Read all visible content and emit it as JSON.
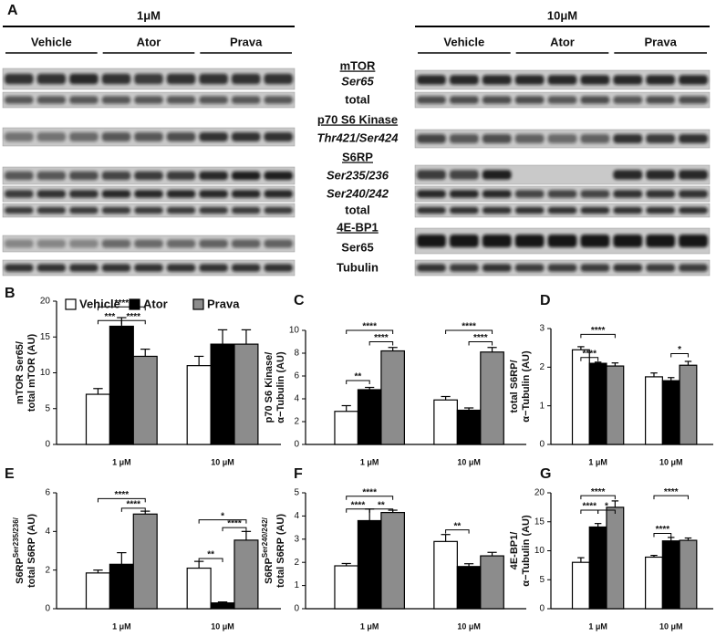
{
  "blot": {
    "panel": "A",
    "concentrations": [
      "1μM",
      "10μM"
    ],
    "groups": [
      "Vehicle",
      "Ator",
      "Prava"
    ],
    "rows": [
      {
        "text": "mTOR",
        "style": "underline"
      },
      {
        "text": "Ser65",
        "style": "italic"
      },
      {
        "text": "total",
        "style": "plain"
      },
      {
        "text": "p70 S6 Kinase",
        "style": "underline"
      },
      {
        "text": "Thr421/Ser424",
        "style": "italic"
      },
      {
        "text": "S6RP",
        "style": "underline"
      },
      {
        "text": "Ser235/236",
        "style": "italic"
      },
      {
        "text": "Ser240/242",
        "style": "italic"
      },
      {
        "text": "total",
        "style": "plain"
      },
      {
        "text": "4E-BP1",
        "style": "underline"
      },
      {
        "text": "Ser65",
        "style": "plain"
      },
      {
        "text": "Tubulin",
        "style": "plain"
      }
    ]
  },
  "legend": [
    {
      "name": "Vehicle",
      "color": "#ffffff"
    },
    {
      "name": "Ator",
      "color": "#000000"
    },
    {
      "name": "Prava",
      "color": "#8c8c8c"
    }
  ],
  "chart_data": [
    {
      "type": "bar",
      "panel": "B",
      "ylabel_lines": [
        [
          {
            "text": "mTOR Ser65/"
          }
        ],
        [
          {
            "text": "total mTOR (AU)"
          }
        ]
      ],
      "categories": [
        "1 μM",
        "10 μM"
      ],
      "series": [
        {
          "color": "#ffffff",
          "values": [
            7,
            11
          ],
          "errors": [
            0.8,
            1.3
          ]
        },
        {
          "color": "#000000",
          "values": [
            16.5,
            14
          ],
          "errors": [
            1.2,
            2
          ]
        },
        {
          "color": "#8c8c8c",
          "values": [
            12.3,
            14
          ],
          "errors": [
            1.0,
            2
          ]
        }
      ],
      "ylim": [
        0,
        20
      ],
      "yticks": [
        0,
        5,
        10,
        15,
        20
      ],
      "annotations": [
        {
          "text": "****",
          "group": 0,
          "from": 0,
          "to": 2,
          "y": 19.2
        },
        {
          "text": "***",
          "group": 0,
          "from": 0,
          "to": 1,
          "y": 17.3
        },
        {
          "text": "****",
          "group": 0,
          "from": 1,
          "to": 2,
          "y": 17.3
        }
      ]
    },
    {
      "type": "bar",
      "panel": "C",
      "ylabel_lines": [
        [
          {
            "text": "p70 S6 Kinase/"
          }
        ],
        [
          {
            "text": "α−Tubulin (AU)"
          }
        ]
      ],
      "categories": [
        "1 μM",
        "10 μM"
      ],
      "series": [
        {
          "color": "#ffffff",
          "values": [
            2.9,
            3.9
          ],
          "errors": [
            0.5,
            0.3
          ]
        },
        {
          "color": "#000000",
          "values": [
            4.8,
            3.0
          ],
          "errors": [
            0.2,
            0.2
          ]
        },
        {
          "color": "#8c8c8c",
          "values": [
            8.2,
            8.1
          ],
          "errors": [
            0.3,
            0.4
          ]
        }
      ],
      "ylim": [
        0,
        10
      ],
      "yticks": [
        0,
        2,
        4,
        6,
        8,
        10
      ],
      "annotations": [
        {
          "text": "**",
          "group": 0,
          "from": 0,
          "to": 1,
          "y": 5.6
        },
        {
          "text": "****",
          "group": 0,
          "from": 1,
          "to": 2,
          "y": 9.0
        },
        {
          "text": "****",
          "group": 0,
          "from": 0,
          "to": 2,
          "y": 10.0
        },
        {
          "text": "****",
          "group": 1,
          "from": 0,
          "to": 2,
          "y": 10.0
        },
        {
          "text": "****",
          "group": 1,
          "from": 1,
          "to": 2,
          "y": 9.0
        }
      ]
    },
    {
      "type": "bar",
      "panel": "D",
      "ylabel_lines": [
        [
          {
            "text": "total S6RP/"
          }
        ],
        [
          {
            "text": "α−Tubulin (AU)"
          }
        ]
      ],
      "categories": [
        "1 μM",
        "10 μM"
      ],
      "series": [
        {
          "color": "#ffffff",
          "values": [
            2.45,
            1.75
          ],
          "errors": [
            0.08,
            0.1
          ]
        },
        {
          "color": "#000000",
          "values": [
            2.1,
            1.65
          ],
          "errors": [
            0.03,
            0.08
          ]
        },
        {
          "color": "#8c8c8c",
          "values": [
            2.03,
            2.05
          ],
          "errors": [
            0.08,
            0.1
          ]
        }
      ],
      "ylim": [
        0,
        3
      ],
      "yticks": [
        0,
        1,
        2,
        3
      ],
      "annotations": [
        {
          "text": "****",
          "group": 0,
          "from": 0,
          "to": 1,
          "y": 2.25
        },
        {
          "text": "****",
          "group": 0,
          "from": 0,
          "to": 2,
          "y": 2.85
        },
        {
          "text": "*",
          "group": 1,
          "from": 1,
          "to": 2,
          "y": 2.35
        }
      ]
    },
    {
      "type": "bar",
      "panel": "E",
      "ylabel_lines": [
        [
          {
            "text": "S6RP"
          },
          {
            "text": "Ser235/236/",
            "sup": true
          }
        ],
        [
          {
            "text": "total S6RP (AU)"
          }
        ]
      ],
      "categories": [
        "1 μM",
        "10 μM"
      ],
      "series": [
        {
          "color": "#ffffff",
          "values": [
            1.85,
            2.1
          ],
          "errors": [
            0.15,
            0.35
          ]
        },
        {
          "color": "#000000",
          "values": [
            2.3,
            0.3
          ],
          "errors": [
            0.6,
            0.05
          ]
        },
        {
          "color": "#8c8c8c",
          "values": [
            4.9,
            3.55
          ],
          "errors": [
            0.15,
            0.45
          ]
        }
      ],
      "ylim": [
        0,
        6
      ],
      "yticks": [
        0,
        2,
        4,
        6
      ],
      "annotations": [
        {
          "text": "****",
          "group": 0,
          "from": 0,
          "to": 2,
          "y": 5.7
        },
        {
          "text": "****",
          "group": 0,
          "from": 1,
          "to": 2,
          "y": 5.2
        },
        {
          "text": "*",
          "group": 1,
          "from": 0,
          "to": 2,
          "y": 4.6
        },
        {
          "text": "****",
          "group": 1,
          "from": 1,
          "to": 2,
          "y": 4.2
        },
        {
          "text": "**",
          "group": 1,
          "from": 0,
          "to": 1,
          "y": 2.6
        }
      ]
    },
    {
      "type": "bar",
      "panel": "F",
      "ylabel_lines": [
        [
          {
            "text": "S6RP"
          },
          {
            "text": "Ser240/242/",
            "sup": true
          }
        ],
        [
          {
            "text": "total S6RP (AU)"
          }
        ]
      ],
      "categories": [
        "1 μM",
        "10 μM"
      ],
      "series": [
        {
          "color": "#ffffff",
          "values": [
            1.85,
            2.9
          ],
          "errors": [
            0.1,
            0.3
          ]
        },
        {
          "color": "#000000",
          "values": [
            3.8,
            1.82
          ],
          "errors": [
            0.5,
            0.12
          ]
        },
        {
          "color": "#8c8c8c",
          "values": [
            4.15,
            2.28
          ],
          "errors": [
            0.1,
            0.15
          ]
        }
      ],
      "ylim": [
        0,
        5
      ],
      "yticks": [
        0,
        1,
        2,
        3,
        4,
        5
      ],
      "annotations": [
        {
          "text": "****",
          "group": 0,
          "from": 0,
          "to": 2,
          "y": 4.85
        },
        {
          "text": "****",
          "group": 0,
          "from": 0,
          "to": 1,
          "y": 4.3
        },
        {
          "text": "**",
          "group": 0,
          "from": 1,
          "to": 2,
          "y": 4.3
        },
        {
          "text": "**",
          "group": 1,
          "from": 0,
          "to": 1,
          "y": 3.4
        }
      ]
    },
    {
      "type": "bar",
      "panel": "G",
      "ylabel_lines": [
        [
          {
            "text": "4E-BP1/"
          }
        ],
        [
          {
            "text": "α−Tubulin (AU)"
          }
        ]
      ],
      "categories": [
        "1 μM",
        "10 μM"
      ],
      "series": [
        {
          "color": "#ffffff",
          "values": [
            8,
            8.9
          ],
          "errors": [
            0.8,
            0.3
          ]
        },
        {
          "color": "#000000",
          "values": [
            14.1,
            11.7
          ],
          "errors": [
            0.6,
            0.6
          ]
        },
        {
          "color": "#8c8c8c",
          "values": [
            17.5,
            11.8
          ],
          "errors": [
            1.1,
            0.4
          ]
        }
      ],
      "ylim": [
        0,
        20
      ],
      "yticks": [
        0,
        5,
        10,
        15,
        20
      ],
      "annotations": [
        {
          "text": "****",
          "group": 0,
          "from": 0,
          "to": 2,
          "y": 19.5
        },
        {
          "text": "****",
          "group": 0,
          "from": 0,
          "to": 1,
          "y": 17
        },
        {
          "text": "*",
          "group": 0,
          "from": 1,
          "to": 2,
          "y": 17
        },
        {
          "text": "****",
          "group": 1,
          "from": 0,
          "to": 2,
          "y": 19.5
        },
        {
          "text": "****",
          "group": 1,
          "from": 0,
          "to": 1,
          "y": 13
        }
      ]
    }
  ]
}
